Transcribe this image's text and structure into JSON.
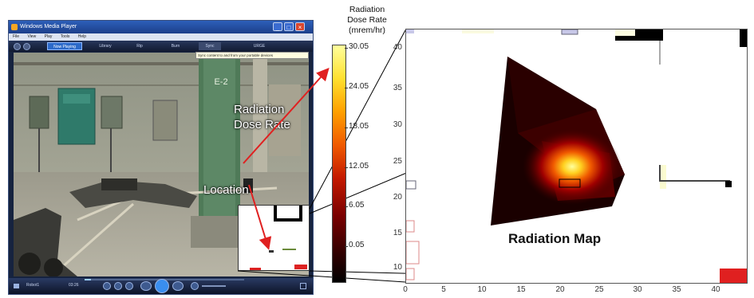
{
  "player": {
    "title": "Windows Media Player",
    "menu": [
      "File",
      "View",
      "Play",
      "Tools",
      "Help"
    ],
    "tabs": [
      "Now Playing",
      "Library",
      "Rip",
      "Burn",
      "Sync",
      "URGE"
    ],
    "active_tab": "Now Playing",
    "tooltip": "Sync content to and from your portable devices",
    "now_playing": "Robot1",
    "time": "03:26",
    "progress": 0.04
  },
  "video": {
    "column_label": "E-2",
    "annotation_dose": [
      "Radiation",
      "Dose Rate"
    ],
    "annotation_location": "Location"
  },
  "colorbar": {
    "title": [
      "Radiation",
      "Dose Rate",
      "(mrem/hr)"
    ],
    "ticks": [
      "30.05",
      "24.05",
      "18.05",
      "12.05",
      "6.05",
      "0.05"
    ],
    "colormap": [
      "#000000",
      "#7a0000",
      "#f05a00",
      "#ffe030",
      "#ffff9c"
    ]
  },
  "map": {
    "label": "Radiation Map",
    "x_ticks": [
      "0",
      "5",
      "10",
      "15",
      "20",
      "25",
      "30",
      "35",
      "40"
    ],
    "y_ticks": [
      "40",
      "35",
      "30",
      "25",
      "20",
      "15",
      "10"
    ],
    "xlim": [
      0,
      44
    ],
    "ylim": [
      8,
      44
    ]
  },
  "colors": {
    "accent_red": "#e02020",
    "player_bg": "#16233f"
  }
}
